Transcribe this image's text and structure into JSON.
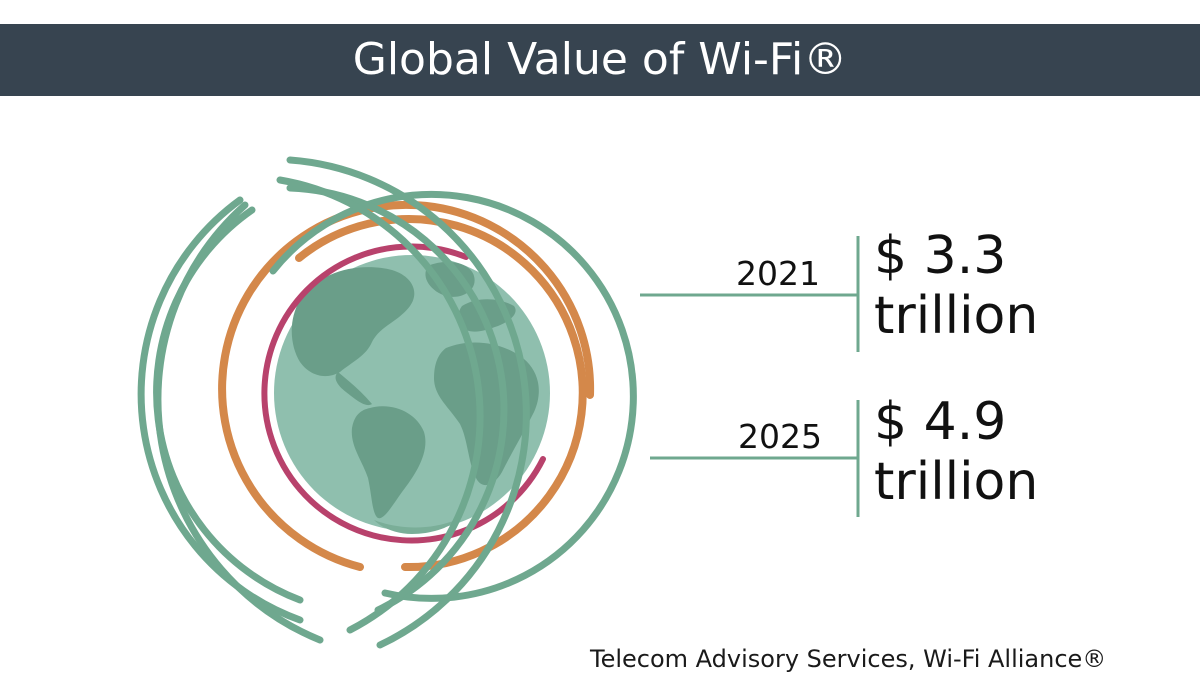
{
  "title": "Global Value of Wi-Fi®",
  "stats": [
    {
      "year": "2021",
      "amount": "$ 3.3",
      "unit": "trillion"
    },
    {
      "year": "2025",
      "amount": "$ 4.9",
      "unit": "trillion"
    }
  ],
  "source": "Telecom Advisory Services, Wi-Fi Alliance®",
  "colors": {
    "banner": "#374450",
    "ring_green": "#6fa88f",
    "ring_orange": "#d4884a",
    "ring_magenta": "#b8426c",
    "globe_ocean": "#8fbfae",
    "globe_land": "#6a9e89"
  },
  "icons": [
    "globe-icon"
  ]
}
